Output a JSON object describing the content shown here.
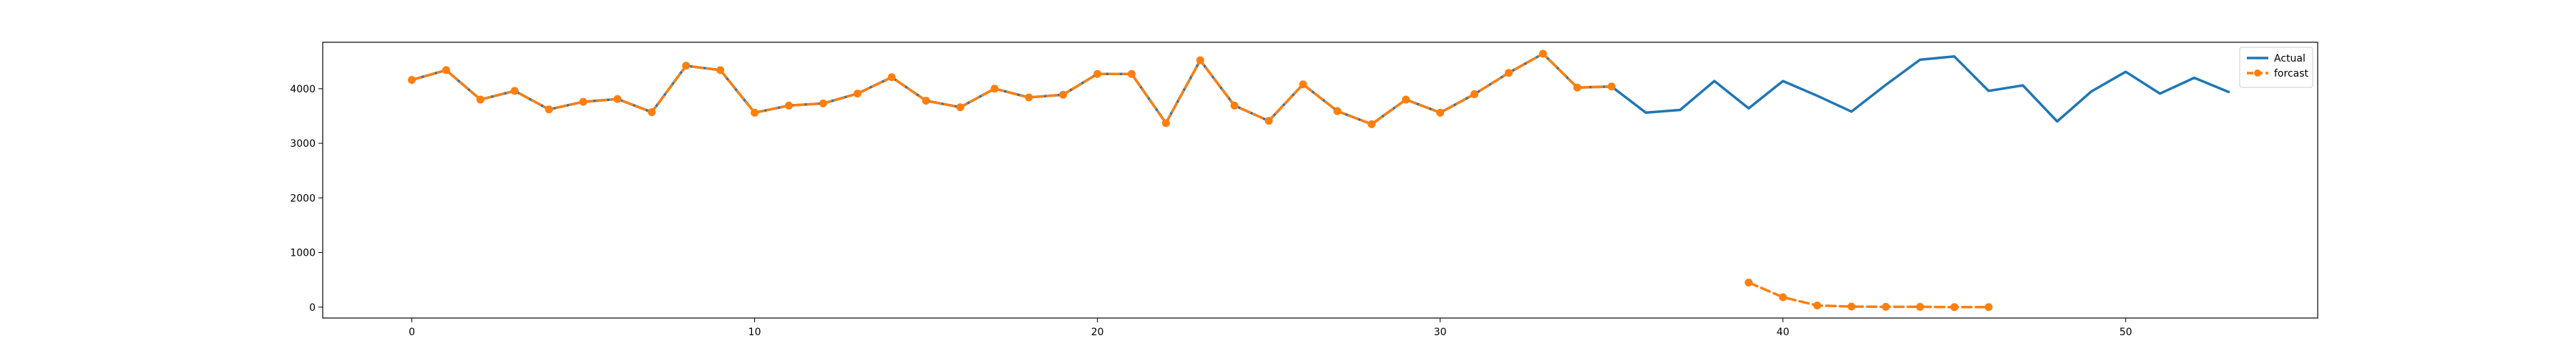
{
  "chart_data": {
    "type": "line",
    "title": "",
    "xlabel": "",
    "ylabel": "",
    "xlim": [
      -2.6,
      55.6
    ],
    "ylim": [
      -200,
      4850
    ],
    "x_ticks": [
      0,
      10,
      20,
      30,
      40,
      50
    ],
    "y_ticks": [
      0,
      1000,
      2000,
      3000,
      4000
    ],
    "grid": false,
    "legend_position": "upper right",
    "series": [
      {
        "name": "Actual",
        "color": "#1f77b4",
        "style": "solid",
        "marker": "none",
        "x": [
          0,
          1,
          2,
          3,
          4,
          5,
          6,
          7,
          8,
          9,
          10,
          11,
          12,
          13,
          14,
          15,
          16,
          17,
          18,
          19,
          20,
          21,
          22,
          23,
          24,
          25,
          26,
          27,
          28,
          29,
          30,
          31,
          32,
          33,
          34,
          35,
          36,
          37,
          38,
          39,
          40,
          41,
          42,
          43,
          44,
          45,
          46,
          47,
          48,
          49,
          50,
          51,
          52,
          53
        ],
        "values": [
          4160,
          4340,
          3800,
          3960,
          3620,
          3760,
          3810,
          3570,
          4420,
          4340,
          3560,
          3690,
          3730,
          3910,
          4210,
          3780,
          3660,
          4000,
          3840,
          3890,
          4270,
          4270,
          3370,
          4520,
          3690,
          3410,
          4080,
          3590,
          3350,
          3800,
          3560,
          3900,
          4290,
          4640,
          4020,
          4040,
          3560,
          3610,
          4140,
          3640,
          4140,
          3870,
          3580,
          4070,
          4530,
          4590,
          3960,
          4060,
          3400,
          3950,
          4310,
          3910,
          4200,
          3940
        ]
      },
      {
        "name": "forcast",
        "color": "#ff7f0e",
        "style": "dashed",
        "marker": "circle",
        "x": [
          0,
          1,
          2,
          3,
          4,
          5,
          6,
          7,
          8,
          9,
          10,
          11,
          12,
          13,
          14,
          15,
          16,
          17,
          18,
          19,
          20,
          21,
          22,
          23,
          24,
          25,
          26,
          27,
          28,
          29,
          30,
          31,
          32,
          33,
          34,
          35
        ],
        "values": [
          4160,
          4340,
          3800,
          3960,
          3620,
          3760,
          3810,
          3570,
          4420,
          4340,
          3560,
          3690,
          3730,
          3910,
          4210,
          3780,
          3660,
          4000,
          3840,
          3890,
          4270,
          4270,
          3370,
          4520,
          3690,
          3410,
          4080,
          3590,
          3350,
          3800,
          3560,
          3900,
          4290,
          4640,
          4020,
          4040
        ]
      },
      {
        "name": "forcast",
        "legend": false,
        "color": "#ff7f0e",
        "style": "dashed",
        "marker": "circle",
        "x": [
          39,
          40,
          41,
          42,
          43,
          44,
          45,
          46
        ],
        "values": [
          450,
          180,
          30,
          10,
          5,
          5,
          0,
          0
        ]
      }
    ]
  }
}
